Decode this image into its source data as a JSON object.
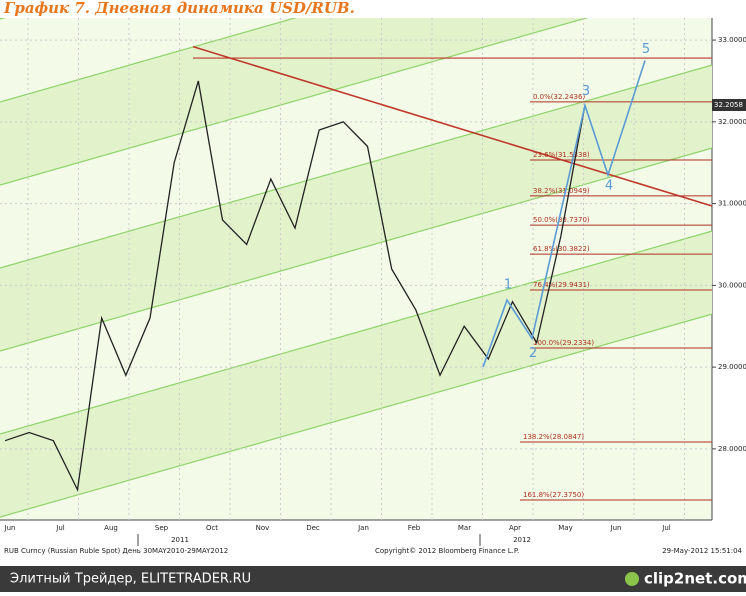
{
  "chart_data": {
    "type": "line",
    "title": "График 7.   Дневная динамика USD/RUB.",
    "color": "#222222",
    "values": [
      28.1,
      28.2,
      28.1,
      27.5,
      29.6,
      28.9,
      29.6,
      31.5,
      32.5,
      30.8,
      30.5,
      31.3,
      30.7,
      31.9,
      32.0,
      31.7,
      30.2,
      29.7,
      28.9,
      29.5,
      29.1,
      29.8,
      29.3,
      30.6,
      32.2058
    ],
    "ylim": [
      27.13,
      33.27
    ],
    "yticks": [
      {
        "value": 28,
        "label": "28.0000"
      },
      {
        "value": 29,
        "label": "29.0000"
      },
      {
        "value": 30,
        "label": "30.0000"
      },
      {
        "value": 31,
        "label": "31.0000"
      },
      {
        "value": 32,
        "label": "32.0000"
      },
      {
        "value": 33,
        "label": "33.0000"
      }
    ],
    "grid": true,
    "month_labels": [
      "Jun",
      "Jul",
      "Aug",
      "Sep",
      "Oct",
      "Nov",
      "Dec",
      "Jan",
      "Feb",
      "Mar",
      "Apr",
      "May",
      "Jun",
      "Jul"
    ],
    "year_labels": [
      "2011",
      "2012"
    ],
    "fib_levels": [
      {
        "value": 32.2436,
        "label": "0.0%(32.2436)"
      },
      {
        "value": 31.5338,
        "label": "23.6%(31.5338)"
      },
      {
        "value": 31.0949,
        "label": "38.2%(31.0949)"
      },
      {
        "value": 30.737,
        "label": "50.0%(30.7370)"
      },
      {
        "value": 30.3822,
        "label": "61.8%(30.3822)"
      },
      {
        "value": 29.9431,
        "label": "76.4%(29.9431)"
      },
      {
        "value": 29.2334,
        "label": "100.0%(29.2334)"
      },
      {
        "value": 28.0847,
        "label": "138.2%(28.0847)"
      },
      {
        "value": 27.375,
        "label": "161.8%(27.3750)"
      }
    ],
    "resistance": 32.78,
    "trendline": [
      32.92,
      30.97
    ],
    "wave_labels": [
      "1",
      "2",
      "3",
      "4",
      "5"
    ],
    "wave_values": [
      29.0,
      29.82,
      29.35,
      32.2,
      31.35,
      32.75
    ]
  },
  "footer": {
    "instrument": "RUB Curncy (Russian Ruble Spot) День 30MAY2010-29MAY2012",
    "copyright": "Copyright© 2012 Bloomberg Finance L.P.",
    "timestamp": "29-May-2012 15:51:04",
    "site": "Элитный Трейдер, ELITETRADER.RU",
    "logo": "clip2net.com"
  }
}
